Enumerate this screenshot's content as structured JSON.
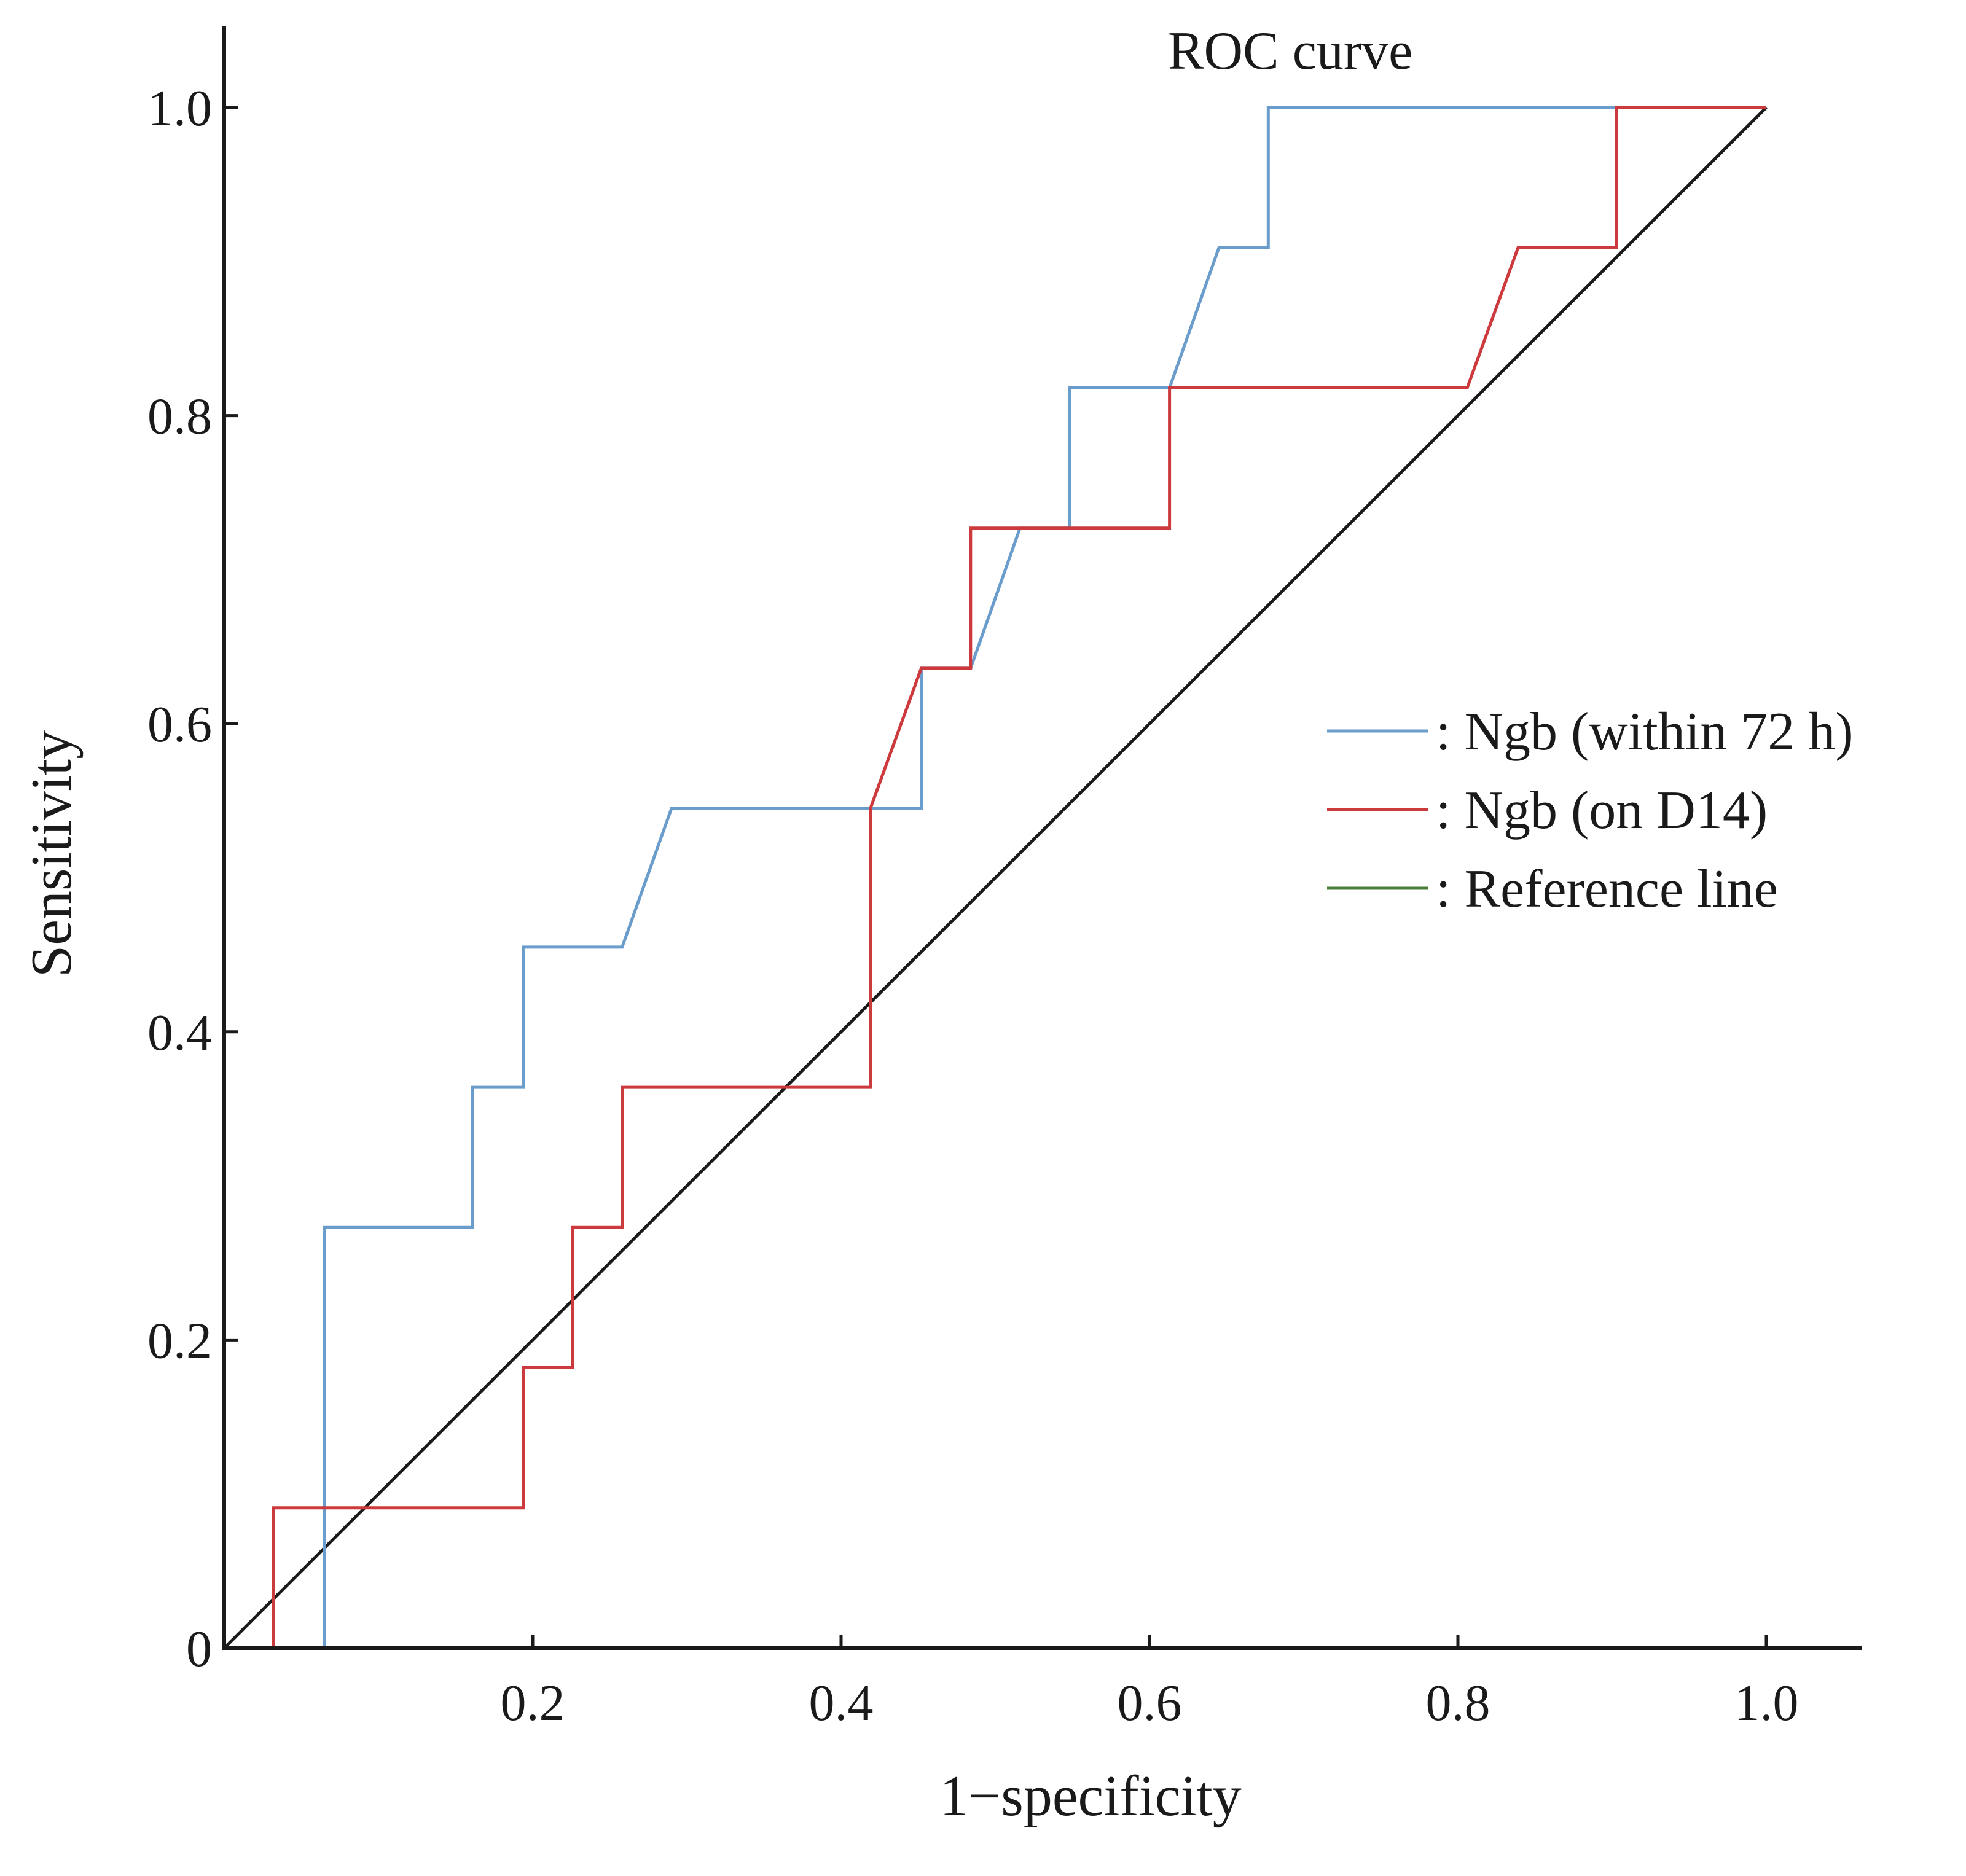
{
  "chart_data": {
    "type": "line",
    "title": "ROC curve",
    "xlabel": "1−specificity",
    "ylabel": "Sensitivity",
    "xlim": [
      0,
      1.06
    ],
    "ylim": [
      0,
      1.05
    ],
    "x_ticks": [
      {
        "value": 0.2,
        "label": "0.2"
      },
      {
        "value": 0.4,
        "label": "0.4"
      },
      {
        "value": 0.6,
        "label": "0.6"
      },
      {
        "value": 0.8,
        "label": "0.8"
      },
      {
        "value": 1.0,
        "label": "1.0"
      }
    ],
    "y_ticks": [
      {
        "value": 0,
        "label": "0"
      },
      {
        "value": 0.2,
        "label": "0.2"
      },
      {
        "value": 0.4,
        "label": "0.4"
      },
      {
        "value": 0.6,
        "label": "0.6"
      },
      {
        "value": 0.8,
        "label": "0.8"
      },
      {
        "value": 1.0,
        "label": "1.0"
      }
    ],
    "grid": false,
    "legend_position": "right",
    "series": [
      {
        "name": ": Ngb (within 72 h)",
        "color": "#6b9dcc",
        "points": [
          [
            0,
            0
          ],
          [
            0.065,
            0
          ],
          [
            0.065,
            0.273
          ],
          [
            0.161,
            0.273
          ],
          [
            0.161,
            0.364
          ],
          [
            0.194,
            0.364
          ],
          [
            0.194,
            0.455
          ],
          [
            0.258,
            0.455
          ],
          [
            0.29,
            0.545
          ],
          [
            0.452,
            0.545
          ],
          [
            0.452,
            0.636
          ],
          [
            0.484,
            0.636
          ],
          [
            0.516,
            0.727
          ],
          [
            0.548,
            0.727
          ],
          [
            0.548,
            0.818
          ],
          [
            0.613,
            0.818
          ],
          [
            0.645,
            0.909
          ],
          [
            0.677,
            0.909
          ],
          [
            0.677,
            1.0
          ],
          [
            1.0,
            1.0
          ]
        ]
      },
      {
        "name": ": Ngb (on D14)",
        "color": "#cc3a3e",
        "points": [
          [
            0,
            0
          ],
          [
            0.032,
            0
          ],
          [
            0.032,
            0.091
          ],
          [
            0.194,
            0.091
          ],
          [
            0.194,
            0.182
          ],
          [
            0.226,
            0.182
          ],
          [
            0.226,
            0.273
          ],
          [
            0.258,
            0.273
          ],
          [
            0.258,
            0.364
          ],
          [
            0.419,
            0.364
          ],
          [
            0.419,
            0.545
          ],
          [
            0.452,
            0.636
          ],
          [
            0.484,
            0.636
          ],
          [
            0.484,
            0.727
          ],
          [
            0.613,
            0.727
          ],
          [
            0.613,
            0.818
          ],
          [
            0.806,
            0.818
          ],
          [
            0.839,
            0.909
          ],
          [
            0.903,
            0.909
          ],
          [
            0.903,
            1.0
          ],
          [
            1.0,
            1.0
          ]
        ]
      },
      {
        "name": ": Reference line",
        "color": "#1a1a1a",
        "legend_color": "#4a7f3a",
        "points": [
          [
            0,
            0
          ],
          [
            1.0,
            1.0
          ]
        ]
      }
    ]
  }
}
